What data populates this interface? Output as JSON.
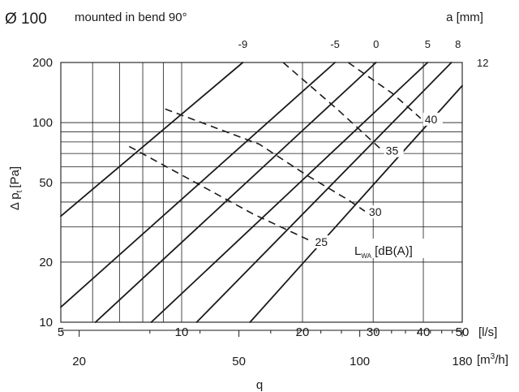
{
  "chart_data": {
    "type": "line",
    "title": "Ø 100",
    "subtitle": "mounted in bend 90°",
    "x_scale": "log",
    "y_scale": "log",
    "xlim": [
      5,
      50
    ],
    "ylim": [
      10,
      200
    ],
    "x_ticks": [
      {
        "value": 5,
        "label": "5"
      },
      {
        "value": 10,
        "label": "10"
      },
      {
        "value": 20,
        "label": "20"
      },
      {
        "value": 30,
        "label": "30"
      },
      {
        "value": 40,
        "label": "40"
      },
      {
        "value": 50,
        "label": "50"
      }
    ],
    "x_unit": "[l/s]",
    "x2_ticks": [
      {
        "value": 20,
        "label": "20"
      },
      {
        "value": 50,
        "label": "50"
      },
      {
        "value": 100,
        "label": "100"
      },
      {
        "value": 180,
        "label": "180"
      }
    ],
    "x2_unit_base": "[m",
    "x2_unit_sup": "3",
    "x2_unit_tail": "/h]",
    "xlabel": "q",
    "y_ticks": [
      {
        "value": 10,
        "label": "10"
      },
      {
        "value": 20,
        "label": "20"
      },
      {
        "value": 50,
        "label": "50"
      },
      {
        "value": 100,
        "label": "100"
      },
      {
        "value": 200,
        "label": "200"
      }
    ],
    "ylabel": "Δ pt [Pa]",
    "ylabel_base": "Δ p",
    "ylabel_sub": "t",
    "ylabel_unit": "[Pa]",
    "a_axis_title": "a [mm]",
    "a_series": [
      {
        "name": "-9",
        "points": [
          [
            5,
            34
          ],
          [
            14.2,
            200
          ]
        ]
      },
      {
        "name": "-5",
        "points": [
          [
            5,
            11.9
          ],
          [
            24.1,
            200
          ]
        ]
      },
      {
        "name": "0",
        "points": [
          [
            6.1,
            10
          ],
          [
            30.5,
            200
          ]
        ]
      },
      {
        "name": "5",
        "points": [
          [
            8.4,
            10
          ],
          [
            41,
            200
          ]
        ]
      },
      {
        "name": "8",
        "points": [
          [
            10.9,
            10
          ],
          [
            47,
            200
          ]
        ]
      },
      {
        "name": "12",
        "points": [
          [
            14.8,
            10
          ],
          [
            50,
            153
          ]
        ]
      }
    ],
    "lwa_title_base": "L",
    "lwa_title_sub": "WA",
    "lwa_title_tail": " [dB(A)]",
    "lwa_series": [
      {
        "name": "25",
        "points": [
          [
            7.4,
            76
          ],
          [
            15,
            35
          ],
          [
            21,
            25.5
          ]
        ]
      },
      {
        "name": "30",
        "points": [
          [
            9.1,
            117
          ],
          [
            15.6,
            78
          ],
          [
            20.5,
            54.5
          ],
          [
            26,
            41
          ],
          [
            28.6,
            36
          ]
        ]
      },
      {
        "name": "35",
        "points": [
          [
            17.9,
            200
          ],
          [
            24.5,
            116
          ],
          [
            31.5,
            73
          ]
        ]
      },
      {
        "name": "40",
        "points": [
          [
            26,
            200
          ],
          [
            33.5,
            140
          ],
          [
            39.4,
            105
          ]
        ]
      }
    ]
  }
}
